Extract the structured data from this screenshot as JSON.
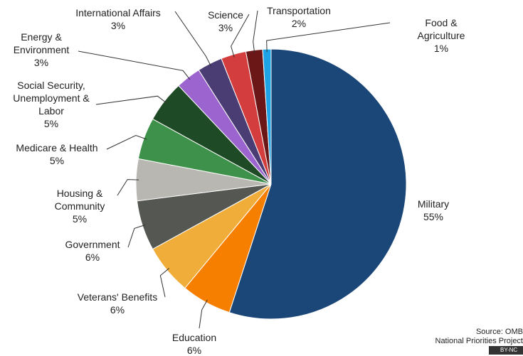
{
  "chart_data": {
    "type": "pie",
    "categories": [
      "Military",
      "Education",
      "Veterans' Benefits",
      "Government",
      "Housing &\nCommunity",
      "Medicare & Health",
      "Social Security,\nUnemployment &\nLabor",
      "Energy &\nEnvironment",
      "International Affairs",
      "Science",
      "Transportation",
      "Food & Agriculture"
    ],
    "values": [
      55,
      6,
      6,
      6,
      5,
      5,
      5,
      3,
      3,
      3,
      2,
      1
    ],
    "value_labels": [
      "55%",
      "6%",
      "6%",
      "6%",
      "5%",
      "5%",
      "5%",
      "3%",
      "3%",
      "3%",
      "2%",
      "1%"
    ],
    "colors": [
      "#1a4678",
      "#f77f00",
      "#f0ad3a",
      "#555752",
      "#b8b7b2",
      "#3e914a",
      "#1f4a26",
      "#9c64cf",
      "#4a3d73",
      "#d43d3d",
      "#6b1717",
      "#1ea4e6"
    ],
    "source": [
      "Source: OMB",
      "National Priorities Project"
    ],
    "license": "BY-NC"
  }
}
